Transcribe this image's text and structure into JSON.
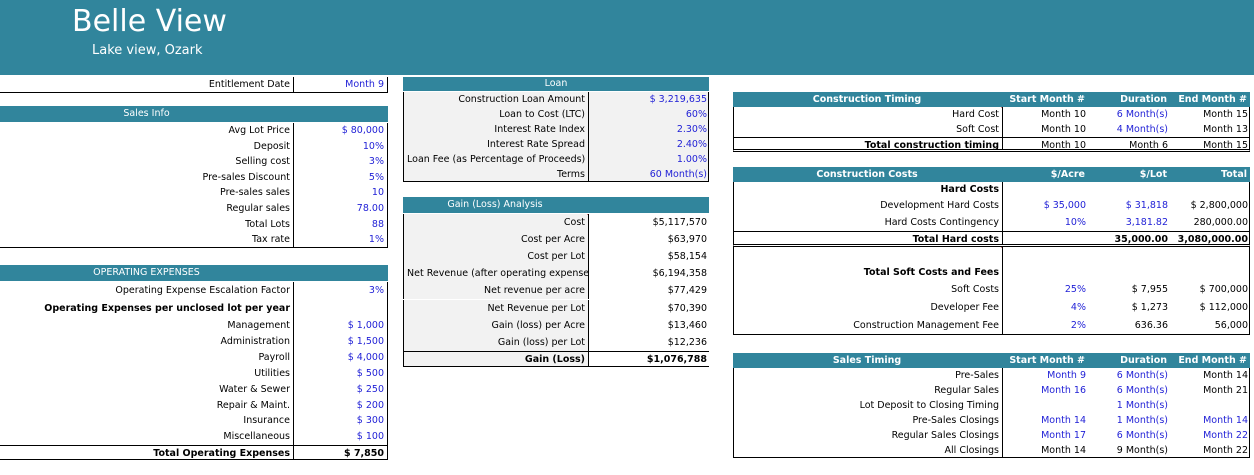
{
  "banner": {
    "title": "Belle View",
    "subtitle": "Lake view, Ozark"
  },
  "entitlement": {
    "label": "Entitlement Date",
    "value": "Month 9"
  },
  "sales_info": {
    "header": "Sales Info",
    "rows": [
      {
        "label": "Avg Lot Price",
        "value": "$ 80,000"
      },
      {
        "label": "Deposit",
        "value": "10%"
      },
      {
        "label": "Selling cost",
        "value": "3%"
      },
      {
        "label": "Pre-sales Discount",
        "value": "5%"
      },
      {
        "label": "Pre-sales sales",
        "value": "10"
      },
      {
        "label": "Regular sales",
        "value": "78.00"
      },
      {
        "label": "Total Lots",
        "value": "88"
      },
      {
        "label": "Tax rate",
        "value": "1%"
      }
    ]
  },
  "opex": {
    "header": "OPERATING EXPENSES",
    "escalation_label": "Operating Expense Escalation Factor",
    "escalation_value": "3%",
    "per_lot_label": "Operating Expenses per unclosed lot per year",
    "rows": [
      {
        "label": "Management",
        "value": "$ 1,000"
      },
      {
        "label": "Administration",
        "value": "$ 1,500"
      },
      {
        "label": "Payroll",
        "value": "$ 4,000"
      },
      {
        "label": "Utilities",
        "value": "$ 500"
      },
      {
        "label": "Water & Sewer",
        "value": "$ 250"
      },
      {
        "label": "Repair & Maint.",
        "value": "$ 200"
      },
      {
        "label": "Insurance",
        "value": "$ 300"
      },
      {
        "label": "Miscellaneous",
        "value": "$ 100"
      }
    ],
    "total_label": "Total Operating Expenses",
    "total_value": "$ 7,850"
  },
  "loan": {
    "header": "Loan",
    "rows": [
      {
        "label": "Construction Loan Amount",
        "value": "$ 3,219,635"
      },
      {
        "label": "Loan to Cost (LTC)",
        "value": "60%"
      },
      {
        "label": "Interest Rate Index",
        "value": "2.30%"
      },
      {
        "label": "Interest Rate Spread",
        "value": "2.40%"
      },
      {
        "label": "Loan Fee (as Percentage of Proceeds)",
        "value": "1.00%"
      },
      {
        "label": "Terms",
        "value": "60 Month(s)"
      }
    ]
  },
  "gain_loss": {
    "header": "Gain (Loss) Analysis",
    "rows": [
      {
        "label": "Cost",
        "value": "$5,117,570"
      },
      {
        "label": "Cost per Acre",
        "value": "$63,970"
      },
      {
        "label": "Cost per Lot",
        "value": "$58,154"
      },
      {
        "label": "Net Revenue (after operating expenses)",
        "value": "$6,194,358"
      },
      {
        "label": "Net revenue per acre",
        "value": "$77,429"
      },
      {
        "label": "Net Revenue per Lot",
        "value": "$70,390"
      },
      {
        "label": "Gain (loss) per Acre",
        "value": "$13,460"
      },
      {
        "label": "Gain (loss) per Lot",
        "value": "$12,236"
      }
    ],
    "total_label": "Gain (Loss)",
    "total_value": "$1,076,788"
  },
  "construction_timing": {
    "header": "Construction Timing",
    "columns": [
      "Start Month #",
      "Duration",
      "End Month #"
    ],
    "rows": [
      {
        "label": "Hard Cost",
        "start": "Month 10",
        "duration": "6 Month(s)",
        "end": "Month 15"
      },
      {
        "label": "Soft Cost",
        "start": "Month 10",
        "duration": "4 Month(s)",
        "end": "Month 13"
      }
    ],
    "total": {
      "label": "Total construction timing",
      "start": "Month 10",
      "duration": "Month 6",
      "end": "Month 15"
    }
  },
  "construction_costs": {
    "header": "Construction Costs",
    "columns": [
      "$/Acre",
      "$/Lot",
      "Total"
    ],
    "hard_heading": "Hard Costs",
    "hard_rows": [
      {
        "label": "Development Hard Costs",
        "acre": "$ 35,000",
        "lot": "$ 31,818",
        "total": "$ 2,800,000"
      },
      {
        "label": "Hard Costs Contingency",
        "acre": "10%",
        "lot": "3,181.82",
        "total": "280,000.00"
      }
    ],
    "hard_total": {
      "label": "Total Hard costs",
      "lot": "35,000.00",
      "total": "3,080,000.00"
    },
    "soft_heading": "Total Soft Costs and Fees",
    "soft_rows": [
      {
        "label": "Soft Costs",
        "acre": "25%",
        "lot": "$ 7,955",
        "total": "$ 700,000"
      },
      {
        "label": "Developer Fee",
        "acre": "4%",
        "lot": "$ 1,273",
        "total": "$ 112,000"
      },
      {
        "label": "Construction Management Fee",
        "acre": "2%",
        "lot": "636.36",
        "total": "56,000"
      }
    ]
  },
  "sales_timing": {
    "header": "Sales Timing",
    "columns": [
      "Start Month #",
      "Duration",
      "End Month #"
    ],
    "rows": [
      {
        "label": "Pre-Sales",
        "start": "Month 9",
        "duration": "6 Month(s)",
        "end": "Month 14"
      },
      {
        "label": "Regular Sales",
        "start": "Month 16",
        "duration": "6 Month(s)",
        "end": "Month 21"
      },
      {
        "label": "Lot Deposit to Closing Timing",
        "start": "",
        "duration": "1 Month(s)",
        "end": ""
      },
      {
        "label": "Pre-Sales Closings",
        "start": "Month 14",
        "duration": "1 Month(s)",
        "end": "Month 14"
      },
      {
        "label": "Regular Sales Closings",
        "start": "Month 17",
        "duration": "6 Month(s)",
        "end": "Month 22"
      },
      {
        "label": "All Closings",
        "start": "Month 14",
        "duration": "9 Month(s)",
        "end": "Month 22"
      }
    ]
  }
}
